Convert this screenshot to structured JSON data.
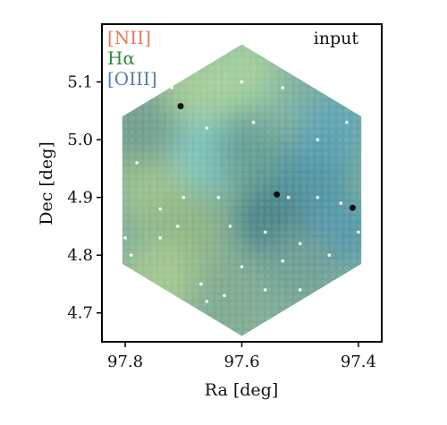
{
  "chart_data": {
    "type": "heatmap",
    "panel_label": "input",
    "xlabel": "Ra [deg]",
    "ylabel": "Dec [deg]",
    "xlim": [
      97.84,
      97.36
    ],
    "ylim": [
      4.65,
      5.2
    ],
    "x_ticks": [
      {
        "value": 97.8,
        "label": "97.8"
      },
      {
        "value": 97.6,
        "label": "97.6"
      },
      {
        "value": 97.4,
        "label": "97.4"
      }
    ],
    "y_ticks": [
      {
        "value": 4.7,
        "label": "4.7"
      },
      {
        "value": 4.8,
        "label": "4.8"
      },
      {
        "value": 4.9,
        "label": "4.9"
      },
      {
        "value": 5.0,
        "label": "5.0"
      },
      {
        "value": 5.1,
        "label": "5.1"
      }
    ],
    "legend": [
      {
        "label": "[NII]",
        "color": "#e8785e"
      },
      {
        "label": "Hα",
        "color": "#2e8b3a"
      },
      {
        "label": "[OIII]",
        "color": "#4f7fb5"
      }
    ],
    "footprint_vertices": [
      [
        97.6,
        5.165
      ],
      [
        97.395,
        5.04
      ],
      [
        97.395,
        4.785
      ],
      [
        97.6,
        4.66
      ],
      [
        97.805,
        4.785
      ],
      [
        97.805,
        5.04
      ]
    ],
    "color_regions": [
      {
        "ra": 97.68,
        "dec": 5.08,
        "color": "#a9cf98"
      },
      {
        "ra": 97.75,
        "dec": 4.92,
        "color": "#9fc28a"
      },
      {
        "ra": 97.7,
        "dec": 4.83,
        "color": "#8fb47f"
      },
      {
        "ra": 97.74,
        "dec": 4.76,
        "color": "#a7c98f"
      },
      {
        "ra": 97.66,
        "dec": 4.98,
        "color": "#7fc7c0"
      },
      {
        "ra": 97.58,
        "dec": 4.98,
        "color": "#5d9a92"
      },
      {
        "ra": 97.55,
        "dec": 4.86,
        "color": "#3f7d85"
      },
      {
        "ra": 97.47,
        "dec": 4.95,
        "color": "#4a8fa3"
      },
      {
        "ra": 97.43,
        "dec": 4.84,
        "color": "#4e95ad"
      },
      {
        "ra": 97.5,
        "dec": 4.78,
        "color": "#6e9e95"
      },
      {
        "ra": 97.62,
        "dec": 4.73,
        "color": "#7fa88e"
      },
      {
        "ra": 97.52,
        "dec": 5.06,
        "color": "#7cb0a0"
      },
      {
        "ra": 97.44,
        "dec": 5.02,
        "color": "#5aa2b5"
      },
      {
        "ra": 97.77,
        "dec": 5.02,
        "color": "#6f9c8a"
      },
      {
        "ra": 97.6,
        "dec": 5.12,
        "color": "#a6d29e"
      }
    ],
    "black_spots": [
      {
        "ra": 97.705,
        "dec": 5.058
      },
      {
        "ra": 97.54,
        "dec": 4.905
      },
      {
        "ra": 97.41,
        "dec": 4.882
      }
    ],
    "white_dots": [
      [
        97.72,
        5.09
      ],
      [
        97.6,
        5.1
      ],
      [
        97.53,
        5.09
      ],
      [
        97.45,
        5.08
      ],
      [
        97.42,
        5.03
      ],
      [
        97.47,
        5.0
      ],
      [
        97.66,
        5.02
      ],
      [
        97.58,
        5.03
      ],
      [
        97.78,
        4.96
      ],
      [
        97.7,
        4.9
      ],
      [
        97.64,
        4.9
      ],
      [
        97.74,
        4.88
      ],
      [
        97.52,
        4.9
      ],
      [
        97.47,
        4.9
      ],
      [
        97.43,
        4.89
      ],
      [
        97.8,
        4.83
      ],
      [
        97.74,
        4.83
      ],
      [
        97.71,
        4.85
      ],
      [
        97.62,
        4.85
      ],
      [
        97.56,
        4.84
      ],
      [
        97.5,
        4.82
      ],
      [
        97.45,
        4.8
      ],
      [
        97.4,
        4.84
      ],
      [
        97.79,
        4.8
      ],
      [
        97.67,
        4.75
      ],
      [
        97.63,
        4.73
      ],
      [
        97.56,
        4.74
      ],
      [
        97.5,
        4.74
      ],
      [
        97.42,
        4.76
      ],
      [
        97.6,
        4.78
      ],
      [
        97.66,
        4.72
      ],
      [
        97.53,
        4.79
      ]
    ]
  }
}
